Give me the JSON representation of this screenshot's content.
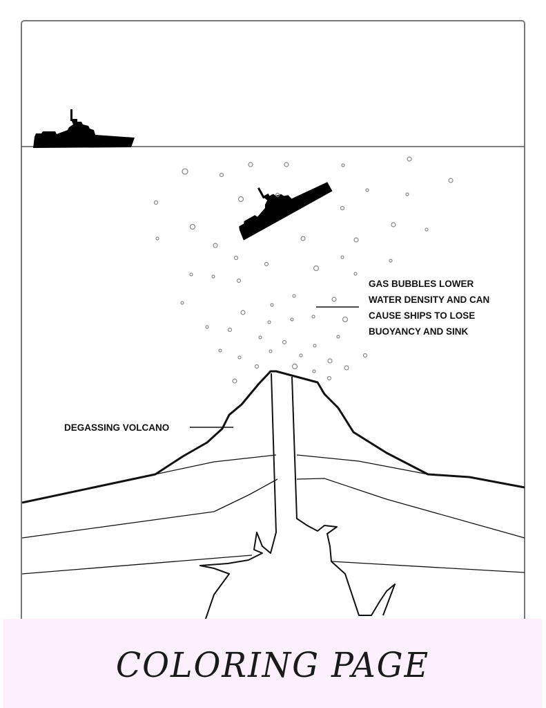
{
  "labels": {
    "gas_bubbles": [
      "GAS BUBBLES LOWER",
      "WATER DENSITY AND CAN",
      "CAUSE SHIPS TO LOSE",
      "BUOYANCY AND SINK"
    ],
    "volcano": "DEGASSING VOLCANO"
  },
  "footer": {
    "title": "COLORING PAGE"
  },
  "colors": {
    "line": "#111111",
    "footer_bg": "#fbf0fb",
    "bubble": "#888888"
  },
  "icons": [
    "ship-icon",
    "sinking-ship-icon",
    "gas-bubble-icon",
    "volcano-icon"
  ]
}
